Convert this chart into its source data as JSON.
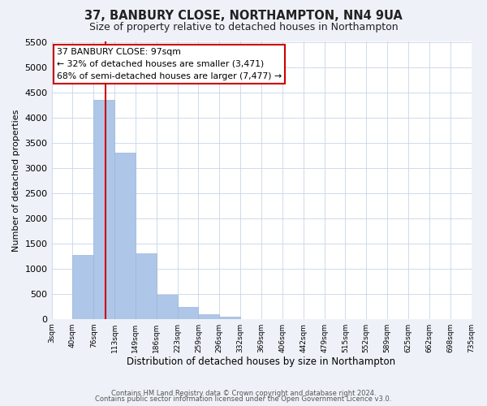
{
  "title": "37, BANBURY CLOSE, NORTHAMPTON, NN4 9UA",
  "subtitle": "Size of property relative to detached houses in Northampton",
  "xlabel": "Distribution of detached houses by size in Northampton",
  "ylabel": "Number of detached properties",
  "bin_labels": [
    "3sqm",
    "40sqm",
    "76sqm",
    "113sqm",
    "149sqm",
    "186sqm",
    "223sqm",
    "259sqm",
    "296sqm",
    "332sqm",
    "369sqm",
    "406sqm",
    "442sqm",
    "479sqm",
    "515sqm",
    "552sqm",
    "589sqm",
    "625sqm",
    "662sqm",
    "698sqm",
    "735sqm"
  ],
  "bar_values": [
    0,
    1270,
    4340,
    3300,
    1300,
    480,
    240,
    90,
    50,
    0,
    0,
    0,
    0,
    0,
    0,
    0,
    0,
    0,
    0,
    0
  ],
  "bar_color": "#aec6e8",
  "bar_edgecolor": "#9ab8d8",
  "vline_color": "#cc0000",
  "annotation_title": "37 BANBURY CLOSE: 97sqm",
  "annotation_line1": "← 32% of detached houses are smaller (3,471)",
  "annotation_line2": "68% of semi-detached houses are larger (7,477) →",
  "annotation_box_edgecolor": "#cc0000",
  "ylim": [
    0,
    5500
  ],
  "yticks": [
    0,
    500,
    1000,
    1500,
    2000,
    2500,
    3000,
    3500,
    4000,
    4500,
    5000,
    5500
  ],
  "footer1": "Contains HM Land Registry data © Crown copyright and database right 2024.",
  "footer2": "Contains public sector information licensed under the Open Government Licence v3.0.",
  "bg_color": "#eef2f8",
  "plot_bg_color": "#ffffff",
  "grid_color": "#c8d4e8",
  "title_fontsize": 10.5,
  "subtitle_fontsize": 9
}
